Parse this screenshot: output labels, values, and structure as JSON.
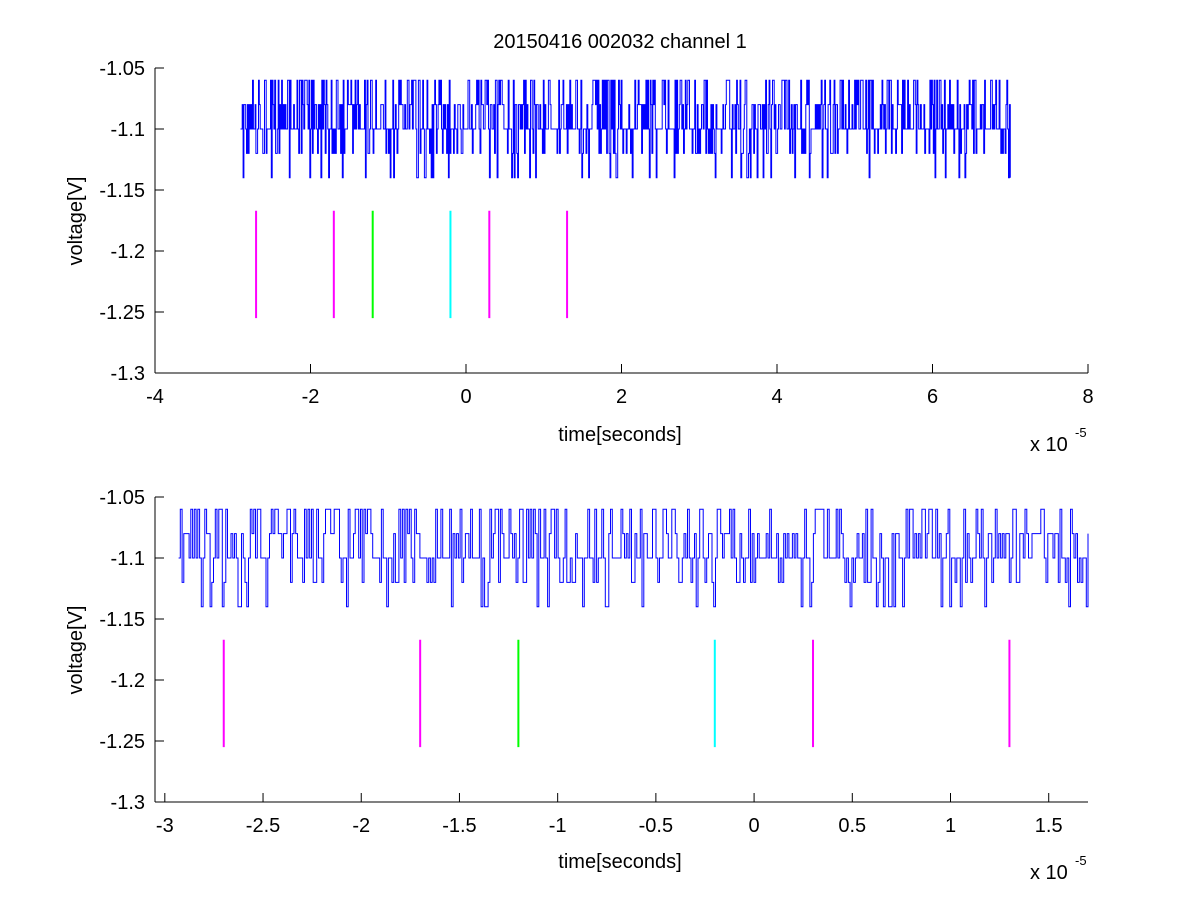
{
  "figure_title": "20150416 002032 channel 1",
  "chart_data": [
    {
      "type": "line",
      "title": "20150416 002032 channel 1",
      "xlabel": "time[seconds]",
      "ylabel": "voltage[V]",
      "x_exponent_label": "x 10",
      "x_exponent": "-5",
      "xlim": [
        -4,
        8
      ],
      "ylim": [
        -1.3,
        -1.05
      ],
      "xticks": [
        -4,
        -2,
        0,
        2,
        4,
        6,
        8
      ],
      "xtick_labels": [
        "-4",
        "-2",
        "0",
        "2",
        "4",
        "6",
        "8"
      ],
      "yticks": [
        -1.3,
        -1.25,
        -1.2,
        -1.15,
        -1.1,
        -1.05
      ],
      "ytick_labels": [
        "-1.3",
        "-1.25",
        "-1.2",
        "-1.15",
        "-1.1",
        "-1.05"
      ],
      "grid": false,
      "series": [
        {
          "kind": "signal",
          "color": "#0000ff",
          "x_range": [
            -2.9,
            7.0
          ],
          "baseline": -1.1,
          "levels": [
            -1.14,
            -1.12,
            -1.1,
            -1.08,
            -1.06
          ],
          "description_of_shape": "quantized noisy trace toggling between levels -1.14 and -1.06 around baseline -1.1"
        },
        {
          "kind": "markers",
          "y_range": [
            -1.255,
            -1.167
          ],
          "marks": [
            {
              "x": -2.7,
              "color": "#ff00ff"
            },
            {
              "x": -1.7,
              "color": "#ff00ff"
            },
            {
              "x": -1.2,
              "color": "#00ff00"
            },
            {
              "x": -0.2,
              "color": "#00ffff"
            },
            {
              "x": 0.3,
              "color": "#ff00ff"
            },
            {
              "x": 1.3,
              "color": "#ff00ff"
            }
          ]
        }
      ]
    },
    {
      "type": "line",
      "title": "",
      "xlabel": "time[seconds]",
      "ylabel": "voltage[V]",
      "x_exponent_label": "x 10",
      "x_exponent": "-5",
      "xlim": [
        -3.05,
        1.7
      ],
      "ylim": [
        -1.3,
        -1.05
      ],
      "xticks": [
        -3,
        -2.5,
        -2,
        -1.5,
        -1,
        -0.5,
        0,
        0.5,
        1,
        1.5
      ],
      "xtick_labels": [
        "-3",
        "-2.5",
        "-2",
        "-1.5",
        "-1",
        "-0.5",
        "0",
        "0.5",
        "1",
        "1.5"
      ],
      "yticks": [
        -1.3,
        -1.25,
        -1.2,
        -1.15,
        -1.1,
        -1.05
      ],
      "ytick_labels": [
        "-1.3",
        "-1.25",
        "-1.2",
        "-1.15",
        "-1.1",
        "-1.05"
      ],
      "grid": false,
      "series": [
        {
          "kind": "signal",
          "color": "#0000ff",
          "x_range": [
            -2.93,
            1.7
          ],
          "baseline": -1.1,
          "levels": [
            -1.14,
            -1.12,
            -1.1,
            -1.08,
            -1.06
          ],
          "description_of_shape": "zoomed view of the same quantized noisy trace"
        },
        {
          "kind": "markers",
          "y_range": [
            -1.255,
            -1.167
          ],
          "marks": [
            {
              "x": -2.7,
              "color": "#ff00ff"
            },
            {
              "x": -1.7,
              "color": "#ff00ff"
            },
            {
              "x": -1.2,
              "color": "#00ff00"
            },
            {
              "x": -0.2,
              "color": "#00ffff"
            },
            {
              "x": 0.3,
              "color": "#ff00ff"
            },
            {
              "x": 1.3,
              "color": "#ff00ff"
            }
          ]
        }
      ]
    }
  ]
}
